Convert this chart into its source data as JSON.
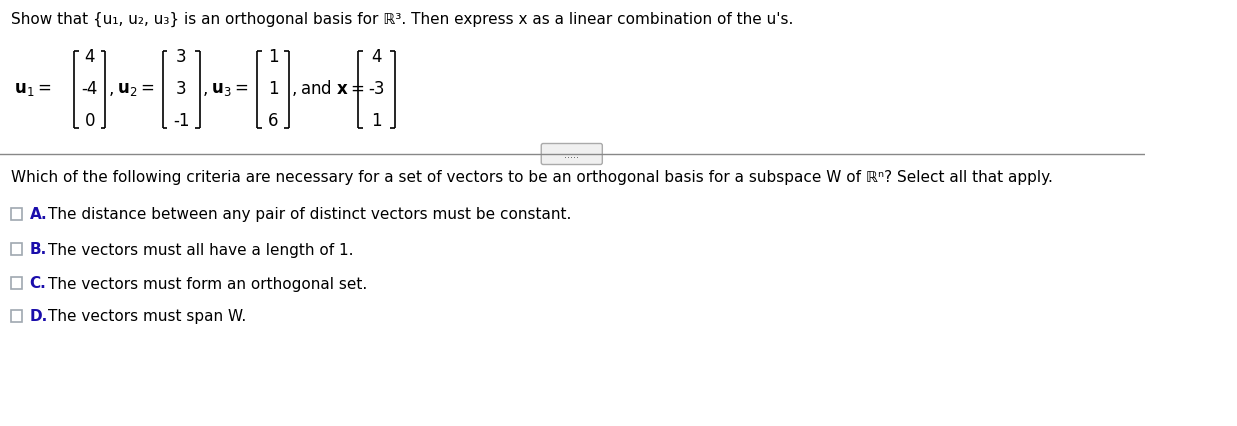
{
  "title_text": "Show that {u₁, u₂, u₃} is an orthogonal basis for ℝ³. Then express x as a linear combination of the u's.",
  "u1": [
    4,
    -4,
    0
  ],
  "u2": [
    3,
    3,
    -1
  ],
  "u3": [
    1,
    1,
    6
  ],
  "x": [
    4,
    -3,
    1
  ],
  "separator_dots": ".....",
  "question_text": "Which of the following criteria are necessary for a set of vectors to be an orthogonal basis for a subspace W of ℝⁿ? Select all that apply.",
  "options": [
    {
      "label": "A.",
      "text": "The distance between any pair of distinct vectors must be constant."
    },
    {
      "label": "B.",
      "text": "The vectors must all have a length of 1."
    },
    {
      "label": "C.",
      "text": "The vectors must form an orthogonal set."
    },
    {
      "label": "D.",
      "text": "The vectors must span W."
    }
  ],
  "bg_color": "#ffffff",
  "text_color": "#000000",
  "option_label_color": "#1a0dab",
  "checkbox_color": "#a0a8b0",
  "line_color": "#888888",
  "figsize": [
    12.37,
    4.27
  ],
  "dpi": 100
}
